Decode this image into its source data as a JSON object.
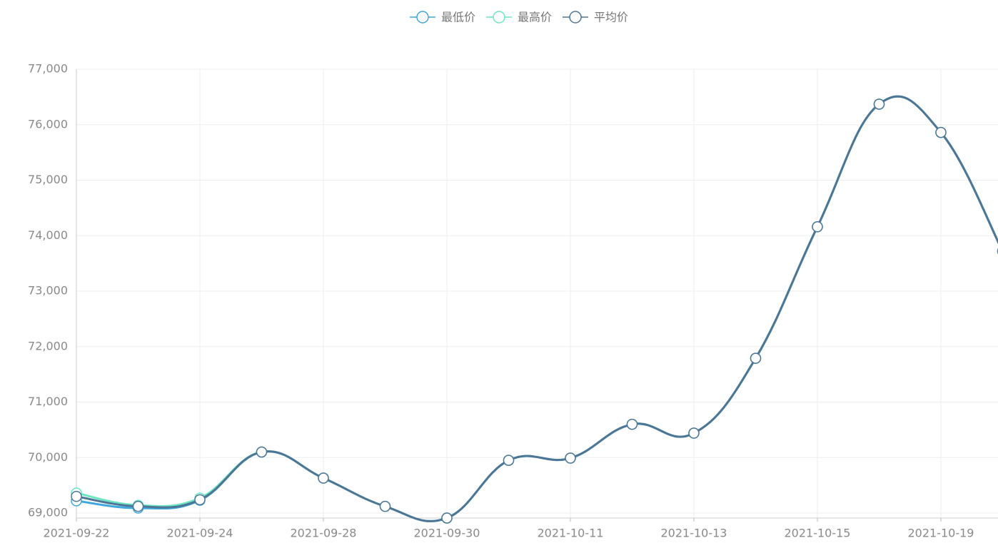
{
  "chart_data": {
    "type": "line",
    "categories": [
      "2021-09-22",
      null,
      "2021-09-24",
      null,
      "2021-09-28",
      null,
      "2021-09-30",
      null,
      "2021-10-11",
      null,
      "2021-10-13",
      null,
      "2021-10-15",
      null,
      "2021-10-19",
      null
    ],
    "series": [
      {
        "name": "最低价",
        "color": "#3fa7dc",
        "values": [
          69220,
          69090,
          69230,
          70100,
          69630,
          69120,
          68910,
          69950,
          69990,
          70600,
          70440,
          71790,
          74160,
          76370,
          75860,
          73720
        ]
      },
      {
        "name": "最高价",
        "color": "#6be6c1",
        "values": [
          69360,
          69140,
          69270,
          70100,
          69630,
          69120,
          68910,
          69950,
          69990,
          70600,
          70440,
          71790,
          74160,
          76370,
          75860,
          73720
        ]
      },
      {
        "name": "平均价",
        "color": "#4e7596",
        "values": [
          69300,
          69120,
          69240,
          70100,
          69630,
          69120,
          68910,
          69950,
          69990,
          70600,
          70440,
          71790,
          74160,
          76370,
          75860,
          73720
        ]
      }
    ],
    "ylim": [
      68910,
      77000
    ],
    "yticks": [
      {
        "value": 69000,
        "label": "69,000"
      },
      {
        "value": 70000,
        "label": "70,000"
      },
      {
        "value": 71000,
        "label": "71,000"
      },
      {
        "value": 72000,
        "label": "72,000"
      },
      {
        "value": 73000,
        "label": "73,000"
      },
      {
        "value": 74000,
        "label": "74,000"
      },
      {
        "value": 75000,
        "label": "75,000"
      },
      {
        "value": 76000,
        "label": "76,000"
      },
      {
        "value": 77000,
        "label": "77,000"
      }
    ],
    "grid": true,
    "smooth": true,
    "legend": "top"
  }
}
